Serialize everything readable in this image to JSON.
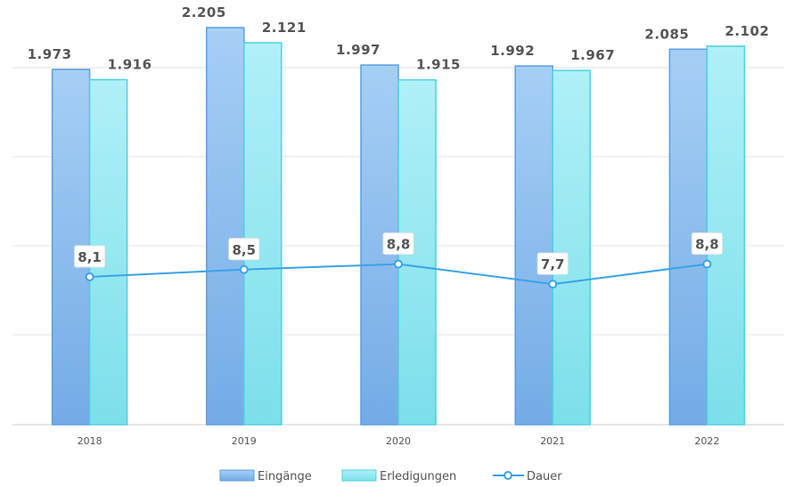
{
  "chart_data": {
    "type": "bar",
    "categories": [
      "2018",
      "2019",
      "2020",
      "2021",
      "2022"
    ],
    "series": [
      {
        "name": "Eingänge",
        "kind": "bar",
        "values": [
          1973,
          2205,
          1997,
          1992,
          2085
        ],
        "labels": [
          "1.973",
          "2.205",
          "1.997",
          "1.992",
          "2.085"
        ],
        "color": "#7fb8ee"
      },
      {
        "name": "Erledigungen",
        "kind": "bar",
        "values": [
          1916,
          2121,
          1915,
          1967,
          2102
        ],
        "labels": [
          "1.916",
          "2.121",
          "1.915",
          "1.967",
          "2.102"
        ],
        "color": "#8ee3f0"
      },
      {
        "name": "Dauer",
        "kind": "line",
        "values": [
          8.1,
          8.5,
          8.8,
          7.7,
          8.8
        ],
        "labels": [
          "8,1",
          "8,5",
          "8,8",
          "7,7",
          "8,8"
        ],
        "color": "#3aa3e8"
      }
    ],
    "ylim_bars": [
      0,
      2250
    ],
    "ylim_line": [
      0,
      22
    ],
    "grid": true,
    "legend_position": "bottom"
  }
}
